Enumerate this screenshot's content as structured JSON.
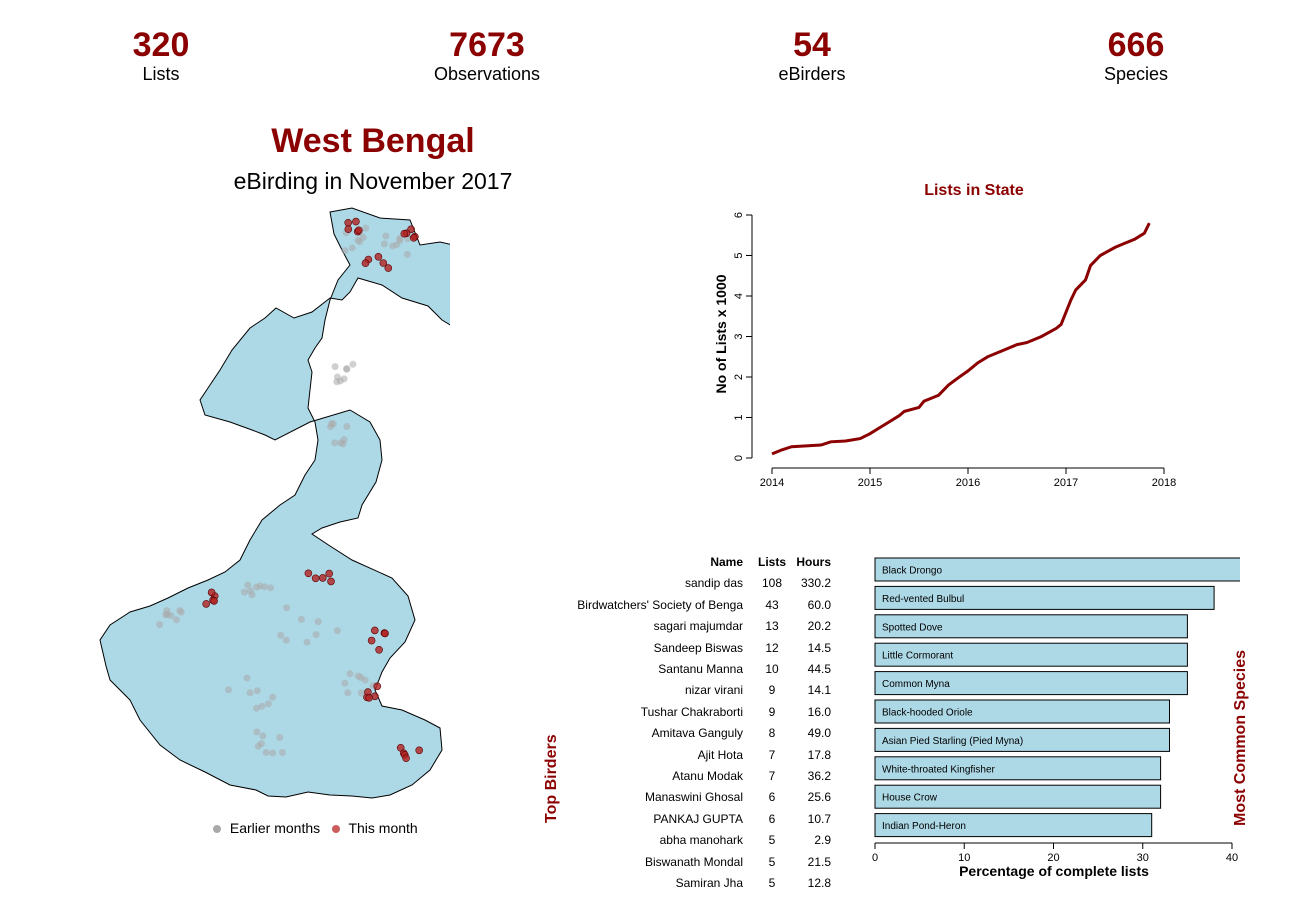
{
  "stats": [
    {
      "value": "320",
      "label": "Lists"
    },
    {
      "value": "7673",
      "label": "Observations"
    },
    {
      "value": "54",
      "label": "eBirders"
    },
    {
      "value": "666",
      "label": "Species"
    }
  ],
  "colors": {
    "accent": "#8b0000",
    "state_fill": "#add8e6",
    "earlier": "#a9a9a9",
    "this_month": "#cd5c5c"
  },
  "header": {
    "title": "West Bengal",
    "subtitle": "eBirding in November 2017"
  },
  "map": {
    "legend_earlier": "Earlier months",
    "legend_this_month": "This month"
  },
  "chart_data": [
    {
      "type": "line",
      "title": "Lists in State",
      "xlabel": "",
      "ylabel": "No of Lists x 1000",
      "xlim": [
        2014,
        2018
      ],
      "ylim": [
        0,
        6
      ],
      "x_ticks": [
        "2014",
        "2015",
        "2016",
        "2017",
        "2018"
      ],
      "y_ticks": [
        "0",
        "1",
        "2",
        "3",
        "4",
        "5",
        "6"
      ],
      "x": [
        2014.0,
        2014.1,
        2014.2,
        2014.35,
        2014.5,
        2014.6,
        2014.75,
        2014.9,
        2015.0,
        2015.1,
        2015.2,
        2015.3,
        2015.35,
        2015.5,
        2015.55,
        2015.7,
        2015.8,
        2015.9,
        2016.0,
        2016.1,
        2016.2,
        2016.35,
        2016.5,
        2016.6,
        2016.75,
        2016.9,
        2016.95,
        2017.0,
        2017.05,
        2017.1,
        2017.2,
        2017.25,
        2017.35,
        2017.5,
        2017.6,
        2017.7,
        2017.8,
        2017.85
      ],
      "y": [
        0.1,
        0.2,
        0.28,
        0.3,
        0.32,
        0.4,
        0.42,
        0.48,
        0.6,
        0.75,
        0.9,
        1.05,
        1.15,
        1.25,
        1.4,
        1.55,
        1.8,
        1.98,
        2.15,
        2.35,
        2.5,
        2.65,
        2.8,
        2.85,
        3.0,
        3.2,
        3.3,
        3.6,
        3.9,
        4.15,
        4.4,
        4.75,
        5.0,
        5.2,
        5.3,
        5.4,
        5.55,
        5.8
      ],
      "color": "#8b0000"
    },
    {
      "type": "bar",
      "title": "Most Common Species",
      "xlabel": "Percentage of complete lists",
      "xlim": [
        0,
        40
      ],
      "x_ticks": [
        "0",
        "10",
        "20",
        "30",
        "40"
      ],
      "categories": [
        "Black Drongo",
        "Red-vented Bulbul",
        "Spotted Dove",
        "Little Cormorant",
        "Common Myna",
        "Black-hooded Oriole",
        "Asian Pied Starling (Pied Myna)",
        "White-throated Kingfisher",
        "House Crow",
        "Indian Pond-Heron"
      ],
      "values": [
        41,
        38,
        35,
        35,
        35,
        33,
        33,
        32,
        32,
        31
      ],
      "color": "#add8e6"
    },
    {
      "type": "table",
      "title": "Top Birders",
      "columns": [
        "Name",
        "Lists",
        "Hours"
      ],
      "rows": [
        [
          "sandip das",
          "108",
          "330.2"
        ],
        [
          "Birdwatchers' Society of Benga",
          "43",
          "60.0"
        ],
        [
          "sagari majumdar",
          "13",
          "20.2"
        ],
        [
          "Sandeep Biswas",
          "12",
          "14.5"
        ],
        [
          "Santanu Manna",
          "10",
          "44.5"
        ],
        [
          "nizar virani",
          "9",
          "14.1"
        ],
        [
          "Tushar Chakraborti",
          "9",
          "16.0"
        ],
        [
          "Amitava Ganguly",
          "8",
          "49.0"
        ],
        [
          "Ajit Hota",
          "7",
          "17.8"
        ],
        [
          "Atanu Modak",
          "7",
          "36.2"
        ],
        [
          "Manaswini Ghosal",
          "6",
          "25.6"
        ],
        [
          "PANKAJ GUPTA",
          "6",
          "10.7"
        ],
        [
          "abha manohark",
          "5",
          "2.9"
        ],
        [
          "Biswanath Mondal",
          "5",
          "21.5"
        ],
        [
          "Samiran Jha",
          "5",
          "12.8"
        ]
      ]
    }
  ]
}
